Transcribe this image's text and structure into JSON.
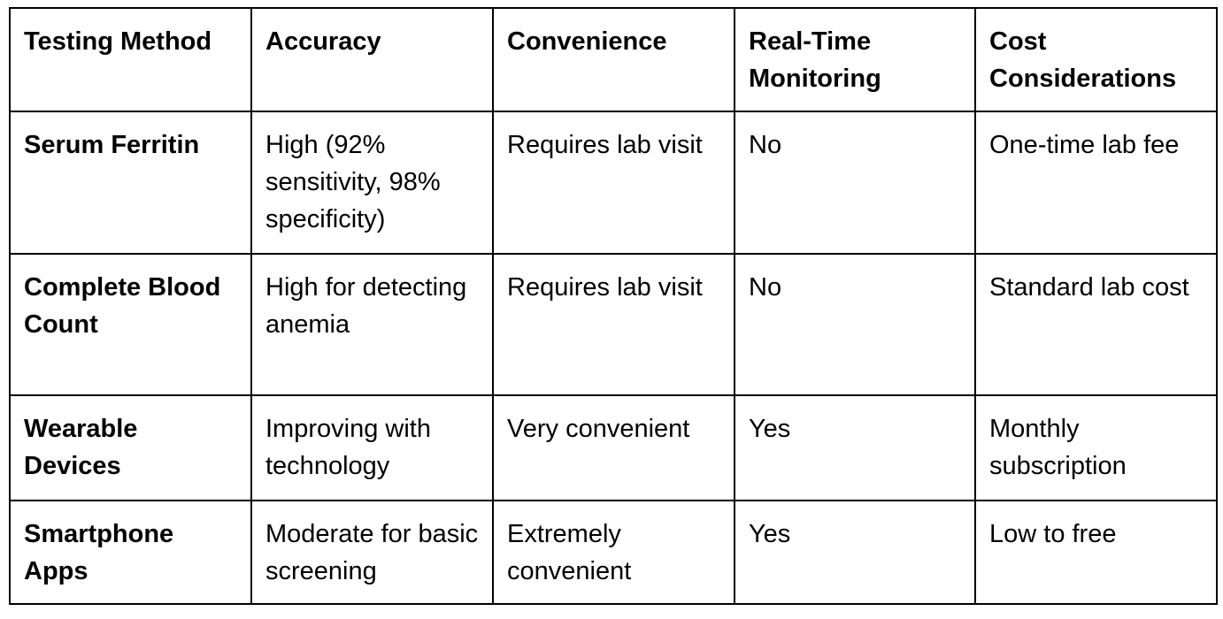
{
  "table": {
    "headers": [
      "Testing Method",
      "Accuracy",
      "Convenience",
      "Real-Time Monitoring",
      "Cost Considerations"
    ],
    "rows": [
      [
        "Serum Ferritin",
        "High (92% sensitivity, 98% specificity)",
        "Requires lab visit",
        "No",
        "One-time lab fee"
      ],
      [
        "Complete Blood Count",
        "High for detecting anemia",
        "Requires lab visit",
        "No",
        "Standard lab cost"
      ],
      [
        "Wearable Devices",
        "Improving with technology",
        "Very convenient",
        "Yes",
        "Monthly subscription"
      ],
      [
        "Smartphone Apps",
        "Moderate for basic screening",
        "Extremely convenient",
        "Yes",
        "Low to free"
      ]
    ]
  }
}
